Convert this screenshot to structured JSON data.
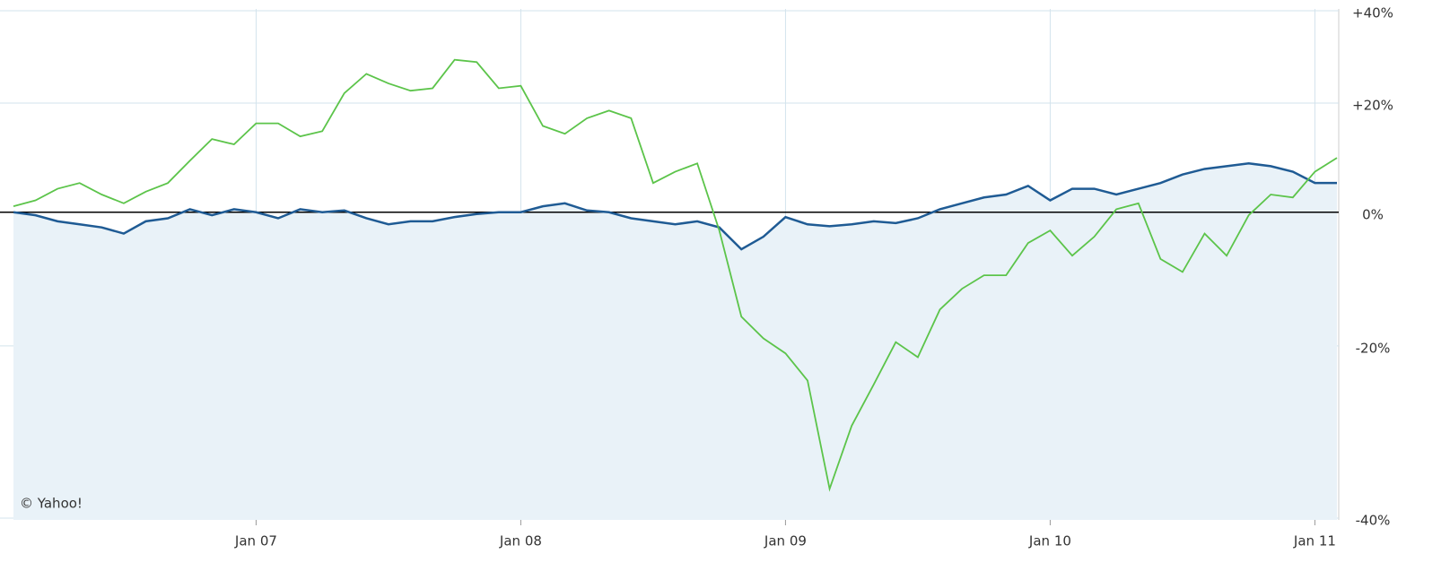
{
  "chart_data": {
    "type": "line",
    "x_start": "2006-02",
    "x_step": "month",
    "xlim": [
      "2006-02",
      "2011-02"
    ],
    "xticks": [
      {
        "value": "2007-01",
        "label": "Jan 07"
      },
      {
        "value": "2008-01",
        "label": "Jan 08"
      },
      {
        "value": "2009-01",
        "label": "Jan 09"
      },
      {
        "value": "2010-01",
        "label": "Jan 10"
      },
      {
        "value": "2011-01",
        "label": "Jan 11"
      }
    ],
    "ylim": [
      -40,
      40
    ],
    "yscale": "log-return",
    "yticks": [
      {
        "value": 40,
        "label": "+40%"
      },
      {
        "value": 20,
        "label": "+20%"
      },
      {
        "value": 0,
        "label": "0%"
      },
      {
        "value": -20,
        "label": "-20%"
      },
      {
        "value": -40,
        "label": "-40%"
      }
    ],
    "grid": true,
    "annotation": "© Yahoo!",
    "series": [
      {
        "color": "#1f5b94",
        "area": true,
        "values": [
          0,
          -0.5,
          -1.5,
          -2,
          -2.5,
          -3.5,
          -1.5,
          -1,
          0.5,
          -0.5,
          0.5,
          0,
          -1,
          0.5,
          0,
          0.3,
          -1,
          -2,
          -1.5,
          -1.5,
          -0.8,
          -0.3,
          0,
          0,
          1,
          1.5,
          0.3,
          0,
          -1,
          -1.5,
          -2,
          -1.5,
          -2.5,
          -6,
          -4,
          -0.8,
          -2,
          -2.3,
          -2,
          -1.5,
          -1.8,
          -1,
          0.5,
          1.5,
          2.5,
          3,
          4.5,
          2,
          4,
          4,
          3,
          4,
          5,
          6.5,
          7.5,
          8,
          8.5,
          8,
          7,
          5,
          5
        ]
      },
      {
        "color": "#5cc44a",
        "area": false,
        "values": [
          1,
          2,
          4,
          5,
          3,
          1.5,
          3.5,
          5,
          9,
          13,
          12,
          16,
          16,
          13.5,
          14.5,
          22,
          26,
          24,
          22.5,
          23,
          29,
          28.5,
          23,
          23.5,
          15.5,
          14,
          17,
          18.5,
          17,
          5,
          7,
          8.5,
          -3,
          -16,
          -19,
          -21,
          -24.5,
          -37,
          -30,
          -25,
          -19.5,
          -21.5,
          -15,
          -12,
          -10,
          -10,
          -5,
          -3,
          -7,
          -4,
          0.5,
          1.5,
          -7.5,
          -9.5,
          -3.5,
          -7,
          -0.5,
          3,
          2.5,
          7,
          9.5
        ]
      }
    ]
  }
}
